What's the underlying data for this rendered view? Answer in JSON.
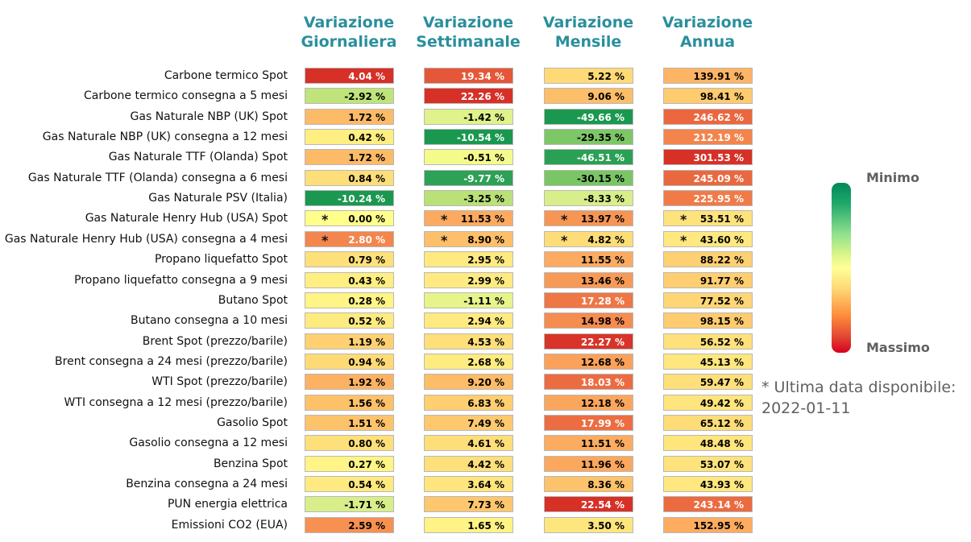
{
  "chart_data": {
    "type": "table",
    "columns": [
      "Variazione\nGiornaliera",
      "Variazione\nSettimanale",
      "Variazione\nMensile",
      "Variazione\nAnnua"
    ],
    "rows": [
      "Carbone termico Spot",
      "Carbone termico consegna a 5 mesi",
      "Gas Naturale NBP (UK) Spot",
      "Gas Naturale NBP (UK) consegna a 12 mesi",
      "Gas Naturale TTF (Olanda) Spot",
      "Gas Naturale TTF (Olanda) consegna a 6 mesi",
      "Gas Naturale PSV (Italia)",
      "Gas Naturale Henry Hub (USA) Spot",
      "Gas Naturale Henry Hub (USA) consegna a 4 mesi",
      "Propano liquefatto Spot",
      "Propano liquefatto consegna a 9 mesi",
      "Butano Spot",
      "Butano consegna a 10 mesi",
      "Brent Spot (prezzo/barile)",
      "Brent consegna a 24 mesi (prezzo/barile)",
      "WTI Spot (prezzo/barile)",
      "WTI consegna a 12 mesi (prezzo/barile)",
      "Gasolio Spot",
      "Gasolio consegna a 12 mesi",
      "Benzina Spot",
      "Benzina consegna a 24 mesi",
      "PUN energia elettrica",
      "Emissioni CO2 (EUA)"
    ],
    "values": [
      [
        4.04,
        19.34,
        5.22,
        139.91
      ],
      [
        -2.92,
        22.26,
        9.06,
        98.41
      ],
      [
        1.72,
        -1.42,
        -49.66,
        246.62
      ],
      [
        0.42,
        -10.54,
        -29.35,
        212.19
      ],
      [
        1.72,
        -0.51,
        -46.51,
        301.53
      ],
      [
        0.84,
        -9.77,
        -30.15,
        245.09
      ],
      [
        -10.24,
        -3.25,
        -8.33,
        225.95
      ],
      [
        0.0,
        11.53,
        13.97,
        53.51
      ],
      [
        2.8,
        8.9,
        4.82,
        43.6
      ],
      [
        0.79,
        2.95,
        11.55,
        88.22
      ],
      [
        0.43,
        2.99,
        13.46,
        91.77
      ],
      [
        0.28,
        -1.11,
        17.28,
        77.52
      ],
      [
        0.52,
        2.94,
        14.98,
        98.15
      ],
      [
        1.19,
        4.53,
        22.27,
        56.52
      ],
      [
        0.94,
        2.68,
        12.68,
        45.13
      ],
      [
        1.92,
        9.2,
        18.03,
        59.47
      ],
      [
        1.56,
        6.83,
        12.18,
        49.42
      ],
      [
        1.51,
        7.49,
        17.99,
        65.12
      ],
      [
        0.8,
        4.61,
        11.51,
        48.48
      ],
      [
        0.27,
        4.42,
        11.96,
        53.07
      ],
      [
        0.54,
        3.64,
        8.36,
        43.93
      ],
      [
        -1.71,
        7.73,
        22.54,
        243.14
      ],
      [
        2.59,
        1.65,
        3.5,
        152.95
      ]
    ],
    "value_suffix": " %",
    "starred_rows": [
      7,
      8
    ],
    "star_symbol": "*",
    "colorbar": {
      "top_label": "Minimo",
      "bottom_label": "Massimo",
      "colors": [
        "#00895a",
        "#8fe08e",
        "#ffff99",
        "#fd8d3c",
        "#d7001f"
      ]
    },
    "footnote": "* Ultima data disponibile:\n    2022-01-11"
  }
}
